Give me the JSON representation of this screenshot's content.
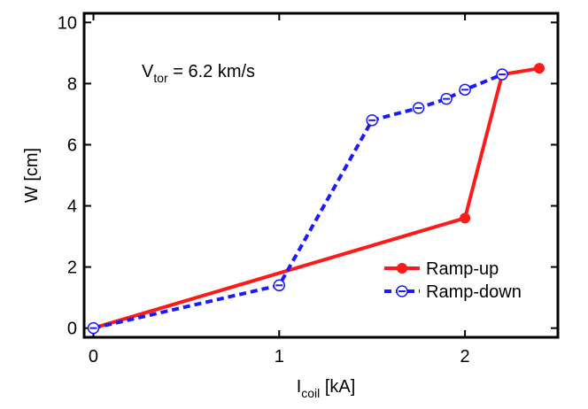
{
  "chart_data": {
    "type": "line",
    "title": "",
    "annotation": {
      "main": "V",
      "sub": "tor",
      "rest": " = 6.2 km/s"
    },
    "xlabel": {
      "main": "I",
      "sub": "coil",
      "rest": " [kA]"
    },
    "ylabel": "W [cm]",
    "xlim": [
      -0.05,
      2.5
    ],
    "ylim": [
      -0.3,
      10.3
    ],
    "xticks": [
      0,
      1,
      2
    ],
    "xtick_labels": [
      "0",
      "1",
      "2"
    ],
    "yticks": [
      0,
      2,
      4,
      6,
      8,
      10
    ],
    "ytick_labels": [
      "0",
      "2",
      "4",
      "6",
      "8",
      "10"
    ],
    "grid": false,
    "legend_position": "bottom-right",
    "series": [
      {
        "name": "Ramp-up",
        "color": "#ff1a1a",
        "style": "solid",
        "marker": "filled-circle",
        "x": [
          0,
          2.0,
          2.2,
          2.4
        ],
        "y": [
          0,
          3.6,
          8.3,
          8.5
        ]
      },
      {
        "name": "Ramp-down",
        "color": "#1a1aff",
        "style": "dashed",
        "marker": "open-circle-dash",
        "x": [
          0,
          1.0,
          1.5,
          1.75,
          1.9,
          2.0,
          2.2
        ],
        "y": [
          0,
          1.4,
          6.8,
          7.2,
          7.5,
          7.8,
          8.3
        ]
      }
    ]
  }
}
